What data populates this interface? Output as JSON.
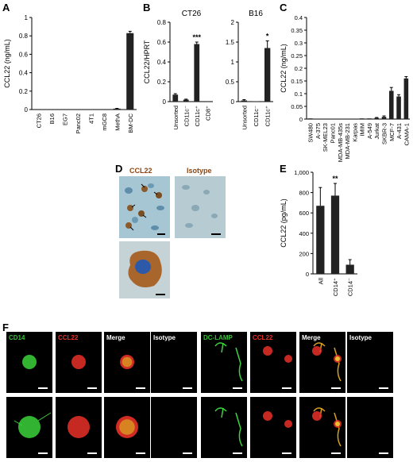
{
  "panels": {
    "A": {
      "letter": "A"
    },
    "B": {
      "letter": "B"
    },
    "C": {
      "letter": "C"
    },
    "D": {
      "letter": "D",
      "label_ccl22": "CCL22",
      "label_isotype": "Isotype"
    },
    "E": {
      "letter": "E"
    },
    "F": {
      "letter": "F"
    }
  },
  "chart_data": [
    {
      "panel": "A",
      "type": "bar",
      "ylabel": "CCL22 (ng/mL)",
      "ylim": [
        0,
        1.0
      ],
      "yticks": [
        "0",
        "0.2",
        "0.4",
        "0.6",
        "0.8",
        "1"
      ],
      "categories": [
        "CT26",
        "B16",
        "EG7",
        "Panc02",
        "4T1",
        "mGC8",
        "MethA",
        "BM-DC"
      ],
      "values": [
        0,
        0,
        0,
        0,
        0,
        0.005,
        0.01,
        0.83
      ],
      "errors": [
        0,
        0,
        0,
        0,
        0,
        0,
        0.003,
        0.02
      ]
    },
    {
      "panel": "B",
      "type": "bar",
      "title": "CT26",
      "ylabel": "CCL22/HPRT",
      "ylim": [
        0,
        0.8
      ],
      "yticks": [
        "0",
        "0.2",
        "0.4",
        "0.6",
        "0.8"
      ],
      "categories": [
        "Unsorted",
        "CD11c⁻",
        "CD11c⁺",
        "CD8⁺"
      ],
      "values": [
        0.07,
        0.02,
        0.58,
        0
      ],
      "errors": [
        0.01,
        0.005,
        0.02,
        0
      ],
      "significance": [
        "",
        "",
        "***",
        ""
      ]
    },
    {
      "panel": "B",
      "type": "bar",
      "title": "B16",
      "ylim": [
        0,
        2
      ],
      "yticks": [
        "0",
        "0.5",
        "1",
        "1.5",
        "2"
      ],
      "categories": [
        "Unsorted",
        "CD11c⁻",
        "CD11c⁺"
      ],
      "values": [
        0.03,
        0.01,
        1.35
      ],
      "errors": [
        0.02,
        0.005,
        0.18
      ],
      "significance": [
        "",
        "",
        "*"
      ]
    },
    {
      "panel": "C",
      "type": "bar",
      "ylabel": "CCL22 (ng/mL)",
      "ylim": [
        0,
        0.45
      ],
      "yticks": [
        "0",
        "0.05",
        "0.1",
        "0.15",
        "0.2",
        "0.25",
        "0.3",
        "0.35",
        "0.4"
      ],
      "categories": [
        "SW480",
        "A-375",
        "SK-MEL23",
        "Panc01",
        "MDA-MB-435s",
        "MDA-MB-231",
        "Karpas",
        "IMIM",
        "A-549",
        "Jurkat",
        "SKBR-3",
        "MCF-7",
        "A-431",
        "CAMA-1"
      ],
      "values": [
        0.003,
        0.002,
        0.002,
        0.002,
        0.002,
        0.002,
        0.002,
        0.003,
        0.003,
        0.005,
        0.01,
        0.125,
        0.1,
        0.18
      ],
      "errors": [
        0.001,
        0.001,
        0.001,
        0.001,
        0.001,
        0.001,
        0.001,
        0.001,
        0.001,
        0.002,
        0.004,
        0.015,
        0.008,
        0.008
      ]
    },
    {
      "panel": "E",
      "type": "bar",
      "ylabel": "CCL22 (pg/mL)",
      "ylim": [
        0,
        1000
      ],
      "yticks": [
        "0",
        "200",
        "400",
        "600",
        "800",
        "1,000"
      ],
      "categories": [
        "All",
        "CD14⁺",
        "CD14⁻"
      ],
      "values": [
        670,
        770,
        90
      ],
      "errors": [
        180,
        120,
        50
      ],
      "significance": [
        "",
        "**",
        ""
      ]
    }
  ],
  "microscopy_F": {
    "row1_labels": [
      "CD14",
      "CCL22",
      "Merge",
      "Isotype",
      "DC-LAMP",
      "CCL22",
      "Merge",
      "Isotype"
    ],
    "row1_colors": [
      "#34c234",
      "#e8302a",
      "#ffffff",
      "#ffffff",
      "#34c234",
      "#e8302a",
      "#ffffff",
      "#ffffff"
    ]
  }
}
